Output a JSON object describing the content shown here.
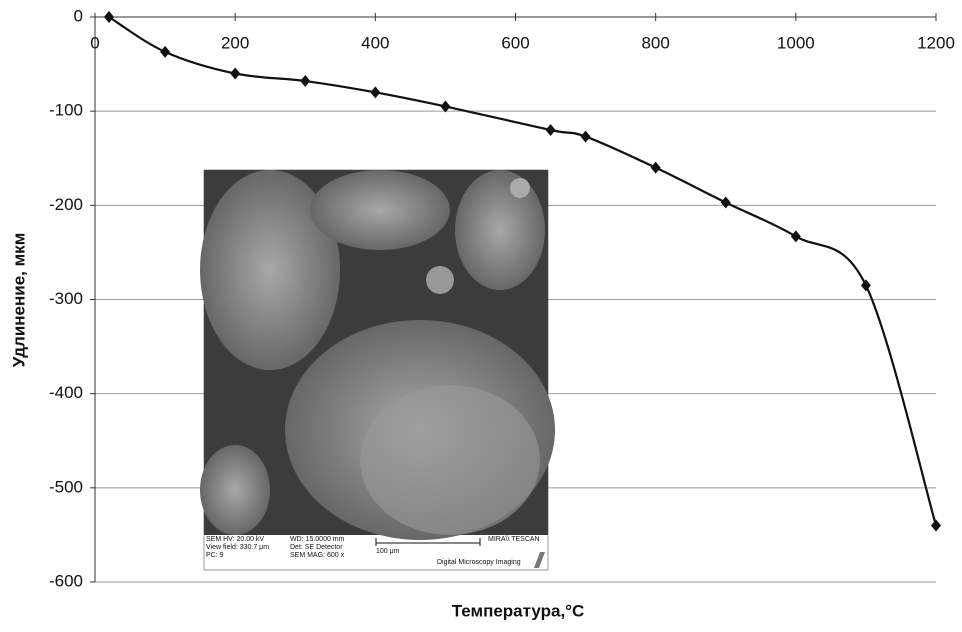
{
  "chart_data": {
    "type": "line",
    "x_label": "Температура,°C",
    "y_label": "Удлинение, мкм",
    "x": [
      20,
      100,
      200,
      300,
      400,
      500,
      650,
      700,
      800,
      900,
      1000,
      1100,
      1200
    ],
    "series": [
      {
        "name": null,
        "color": "#111111",
        "values": [
          0,
          -37,
          -60,
          -68,
          -80,
          -95,
          -120,
          -127,
          -160,
          -197,
          -233,
          -285,
          -540
        ]
      }
    ],
    "xlim": [
      0,
      1200
    ],
    "xticks": [
      0,
      200,
      400,
      600,
      800,
      1000,
      1200
    ],
    "ylim": [
      -600,
      0
    ],
    "yticks": [
      0,
      -100,
      -200,
      -300,
      -400,
      -500,
      -600
    ],
    "grid": true,
    "inset_labels": [
      "SEM HV: 20.00 kV",
      "View field: 330.7 μm",
      "PC:  9",
      "WD: 15.0000 mm",
      "Det: SE Detector",
      "SEM MAG: 600 x",
      "100 μm",
      "MIRA\\\\ TESCAN",
      "Digital Microscopy Imaging"
    ]
  }
}
